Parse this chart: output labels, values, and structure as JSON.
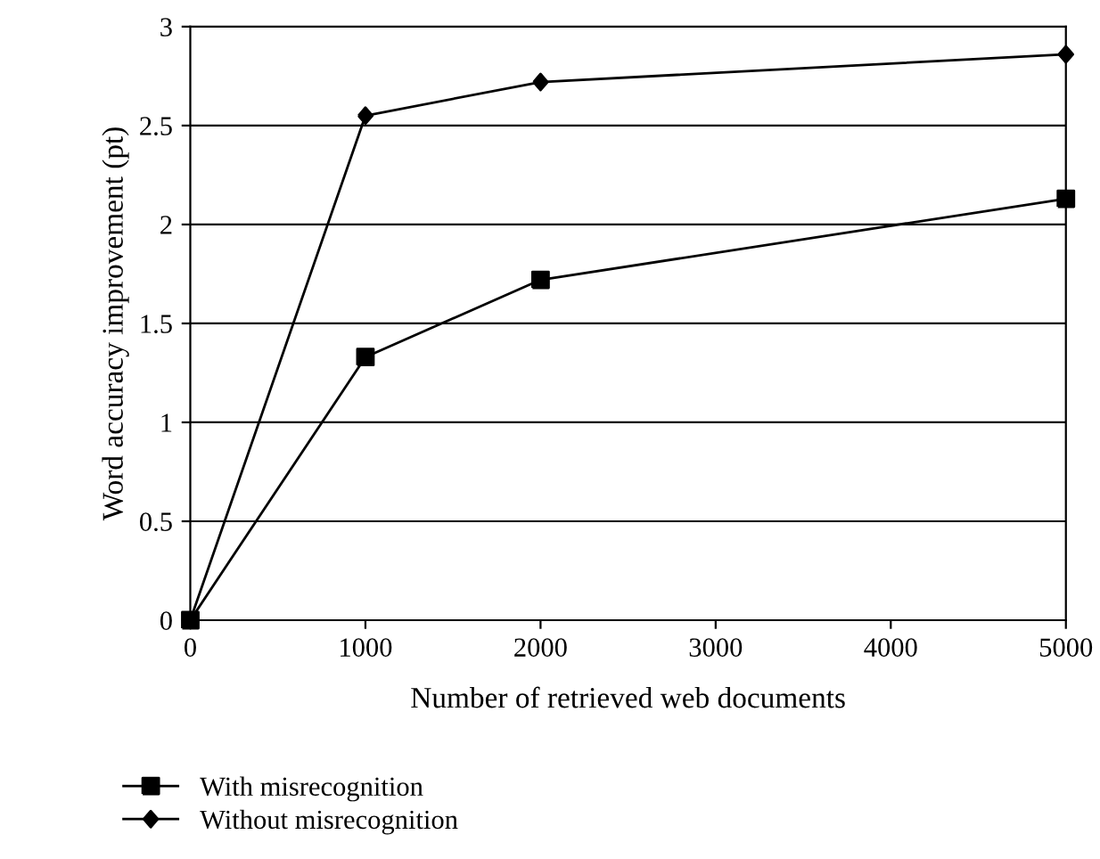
{
  "chart_data": {
    "type": "line",
    "xlabel": "Number of retrieved web documents",
    "ylabel": "Word accuracy improvement (pt)",
    "x": [
      0,
      1000,
      2000,
      5000
    ],
    "series": [
      {
        "name": "With misrecognition",
        "color": "#000000",
        "marker": "square",
        "values": [
          0,
          1.33,
          1.72,
          2.13
        ]
      },
      {
        "name": "Without misrecognition",
        "color": "#000000",
        "marker": "diamond",
        "values": [
          0,
          2.55,
          2.72,
          2.86
        ]
      }
    ],
    "xlim": [
      0,
      5000
    ],
    "xticks": [
      0,
      1000,
      2000,
      3000,
      4000,
      5000
    ],
    "ylim": [
      0,
      3
    ],
    "yticks": [
      0,
      0.5,
      1,
      1.5,
      2,
      2.5,
      3
    ],
    "grid": "y",
    "legend": "bottom",
    "line_style": "solid"
  }
}
